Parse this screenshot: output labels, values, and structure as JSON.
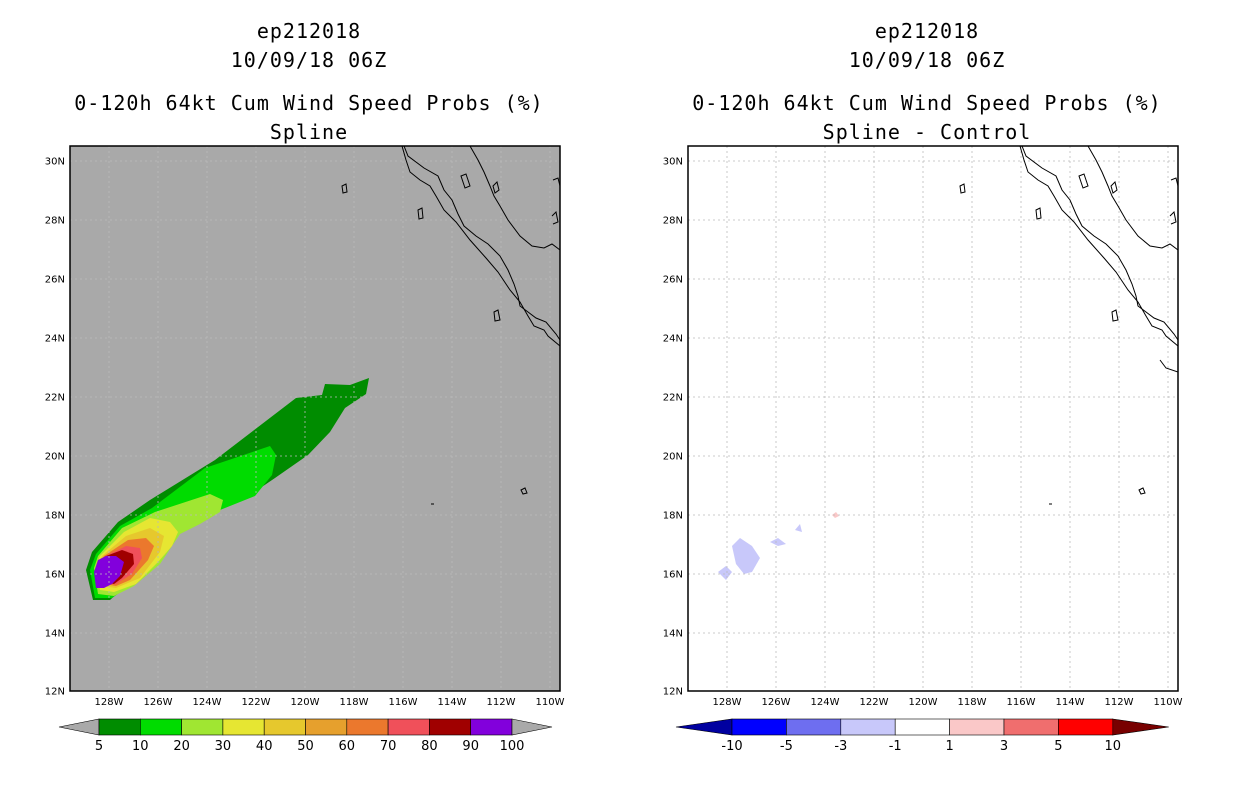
{
  "left_panel": {
    "title_line1": "ep212018",
    "title_line2": "10/09/18 06Z",
    "title_line3": "0-120h 64kt Cum Wind Speed Probs (%)",
    "title_line4": "Spline",
    "background_color": "#a9a9a9",
    "lat_labels": [
      "30N",
      "28N",
      "26N",
      "24N",
      "22N",
      "20N",
      "18N",
      "16N",
      "14N",
      "12N"
    ],
    "lon_labels": [
      "128W",
      "126W",
      "124W",
      "122W",
      "120W",
      "118W",
      "116W",
      "114W",
      "112W",
      "110W"
    ],
    "colorbar": {
      "colors": [
        "#008c00",
        "#00dc00",
        "#a0e632",
        "#e6e632",
        "#e6c82d",
        "#e6a02d",
        "#eb782d",
        "#f0505a",
        "#a00000",
        "#8200dc"
      ],
      "under_color": "#a9a9a9",
      "over_color": "#a9a9a9",
      "labels": [
        "5",
        "10",
        "20",
        "30",
        "40",
        "50",
        "60",
        "70",
        "80",
        "90",
        "100"
      ]
    }
  },
  "right_panel": {
    "title_line1": "ep212018",
    "title_line2": "10/09/18 06Z",
    "title_line3": "0-120h 64kt Cum Wind Speed Probs (%)",
    "title_line4": "Spline - Control",
    "background_color": "#ffffff",
    "lat_labels": [
      "30N",
      "28N",
      "26N",
      "24N",
      "22N",
      "20N",
      "18N",
      "16N",
      "14N",
      "12N"
    ],
    "lon_labels": [
      "128W",
      "126W",
      "124W",
      "122W",
      "120W",
      "118W",
      "116W",
      "114W",
      "112W",
      "110W"
    ],
    "colorbar": {
      "colors": [
        "#0000ff",
        "#6e6ef0",
        "#c8c8fa",
        "#ffffff",
        "#fac8c8",
        "#f06e6e",
        "#ff0000"
      ],
      "under_color": "#0000a0",
      "over_color": "#780000",
      "labels": [
        "-10",
        "-5",
        "-3",
        "-1",
        "1",
        "3",
        "5",
        "10"
      ]
    }
  }
}
